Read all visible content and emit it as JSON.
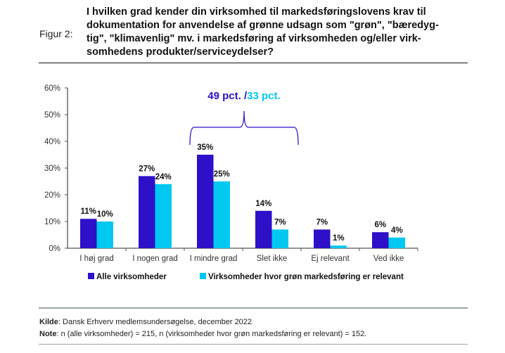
{
  "figure_label": "Figur 2:",
  "title": "I hvilken grad kender din virksomhed til markedsføringslovens krav til dokumentation for anvendelse af grønne udsagn som \"grøn\", \"bæredyg-tig\", \"klimavenlig\" mv. i markedsføring af virksomheden og/eller virk-somhedens produkter/serviceydelser?",
  "title_lines": [
    "I hvilken grad kender din virksomhed til markedsføringslovens krav til",
    "dokumentation for anvendelse af grønne udsagn som \"grøn\", \"bæredyg-",
    "tig\", \"klimavenlig\" mv. i markedsføring af virksomheden og/eller virk-",
    "somhedens produkter/serviceydelser?"
  ],
  "annotation": {
    "part1": "49 pct. /",
    "part2": "33 pct."
  },
  "source": {
    "label": "Kilde",
    "text": ": Dansk Erhverv medlemsundersøgelse, december 2022"
  },
  "note": {
    "label": "Note",
    "text": ": n (alle virksomheder) = 215, n (virksomheder hvor grøn markedsføring er relevant) = 152."
  },
  "colors": {
    "series1": "#2d10c8",
    "series2": "#00c8f0",
    "annotation1": "#2d10c8",
    "annotation2": "#00c8f0"
  },
  "chart_data": {
    "type": "bar",
    "title": "",
    "xlabel": "",
    "ylabel": "",
    "ylim": [
      0,
      60
    ],
    "yticks": [
      "0%",
      "10%",
      "20%",
      "30%",
      "40%",
      "50%",
      "60%"
    ],
    "categories": [
      "I høj grad",
      "I nogen grad",
      "I mindre grad",
      "Slet ikke",
      "Ej relevant",
      "Ved ikke"
    ],
    "series": [
      {
        "name": "Alle virksomheder",
        "values": [
          11,
          27,
          35,
          14,
          7,
          6
        ],
        "labels": [
          "11%",
          "27%",
          "35%",
          "14%",
          "7%",
          "6%"
        ]
      },
      {
        "name": "Virksomheder hvor grøn markedsføring er relevant",
        "values": [
          10,
          24,
          25,
          7,
          1,
          4
        ],
        "labels": [
          "10%",
          "24%",
          "25%",
          "7%",
          "1%",
          "4%"
        ]
      }
    ],
    "legend": "bottom",
    "grid": false
  }
}
